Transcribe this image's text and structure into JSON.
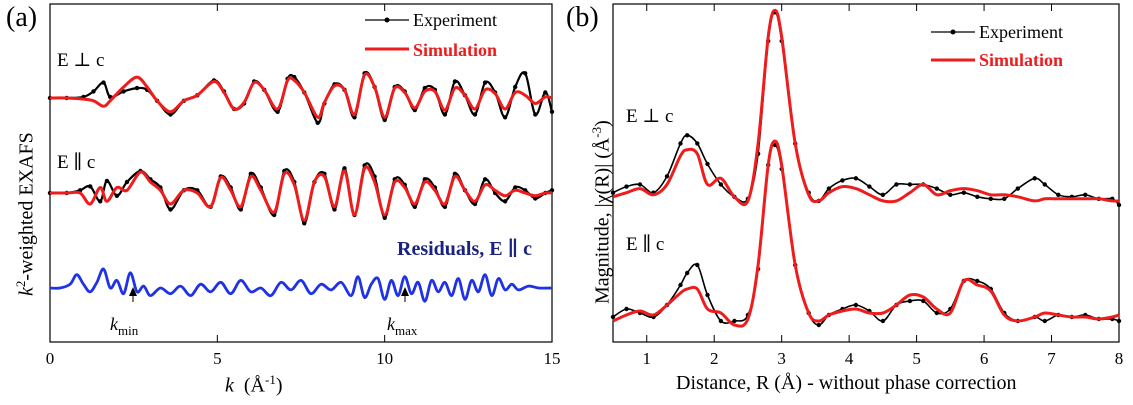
{
  "panel_a": {
    "letter": "(a)",
    "ylabel_k": "k",
    "ylabel_sup": "2",
    "ylabel_rest": "-weighted EXAFS",
    "xlabel_k": "k",
    "xlabel_unit": "(Å",
    "xlabel_unit_sup": "-1",
    "xlabel_close": ")",
    "label_perp": "E ⊥ c",
    "label_par": "E ∥ c",
    "residuals_label": "Residuals, E ∥ c",
    "kmin_main": "k",
    "kmin_sub": "min",
    "kmax_main": "k",
    "kmax_sub": "max"
  },
  "panel_b": {
    "letter": "(b)",
    "ylabel": "Magnitude, |χ(R)| (Å",
    "ylabel_sup": "-3",
    "ylabel_close": ")",
    "xlabel": "Distance, R (Å) - without phase correction",
    "label_perp": "E ⊥ c",
    "label_par": "E ∥ c"
  },
  "legend": {
    "experiment": "Experiment",
    "simulation": "Simulation"
  },
  "colors": {
    "experiment": "#000000",
    "simulation": "#ee1c1c",
    "residuals": "#1f32e6",
    "residuals_label": "#1a237e"
  },
  "chart_data": [
    {
      "type": "line",
      "panel": "(a)",
      "xlabel": "k (Å-1)",
      "ylabel": "k2-weighted EXAFS",
      "xlim": [
        0,
        15
      ],
      "xticks": [
        0,
        5,
        10,
        15
      ],
      "legend_position": "top-right",
      "kmin": 2.3,
      "kmax": 10.6,
      "series": [
        {
          "name": "Experiment",
          "label": "E ⊥ c",
          "x": [
            0,
            0.5,
            1.0,
            1.3,
            1.6,
            1.8,
            2.2,
            2.6,
            2.9,
            3.2,
            3.6,
            4.0,
            4.4,
            4.9,
            5.2,
            5.5,
            5.8,
            6.1,
            6.4,
            6.8,
            7.1,
            7.3,
            7.6,
            8.0,
            8.2,
            8.5,
            8.8,
            9.1,
            9.4,
            9.7,
            10.0,
            10.3,
            10.6,
            10.9,
            11.2,
            11.5,
            11.8,
            12.1,
            12.4,
            12.7,
            13.0,
            13.3,
            13.6,
            13.9,
            14.2,
            14.5,
            14.8,
            15.0
          ],
          "y": [
            0,
            0,
            0.02,
            0.12,
            0.28,
            0.02,
            0.12,
            0.18,
            0.15,
            -0.05,
            -0.3,
            -0.05,
            0.05,
            0.32,
            0.12,
            -0.2,
            -0.1,
            0.3,
            0.15,
            -0.25,
            0.35,
            0.38,
            0.1,
            -0.45,
            -0.1,
            0.25,
            0.15,
            -0.35,
            0.45,
            0.2,
            -0.4,
            0.2,
            0.12,
            -0.22,
            0.18,
            0.15,
            -0.3,
            0.3,
            0.05,
            -0.3,
            0.28,
            0.1,
            -0.35,
            0.2,
            0.45,
            -0.3,
            0.1,
            -0.25
          ]
        },
        {
          "name": "Simulation",
          "label": "E ⊥ c",
          "x": [
            0,
            0.5,
            1.0,
            1.3,
            1.6,
            1.8,
            2.2,
            2.6,
            2.9,
            3.2,
            3.6,
            4.0,
            4.4,
            4.9,
            5.2,
            5.5,
            5.8,
            6.1,
            6.4,
            6.8,
            7.1,
            7.3,
            7.6,
            8.0,
            8.2,
            8.5,
            8.8,
            9.1,
            9.4,
            9.7,
            10.0,
            10.3,
            10.6,
            10.9,
            11.2,
            11.5,
            11.8,
            12.1,
            12.4,
            12.7,
            13.0,
            13.3,
            13.6,
            13.9,
            14.2,
            14.5,
            14.8,
            15.0
          ],
          "y": [
            0,
            0,
            -0.02,
            -0.05,
            -0.15,
            -0.05,
            0.2,
            0.38,
            0.2,
            -0.05,
            -0.25,
            -0.05,
            0.05,
            0.3,
            0.1,
            -0.2,
            -0.08,
            0.28,
            0.15,
            -0.2,
            0.32,
            0.32,
            0.1,
            -0.35,
            -0.08,
            0.22,
            0.15,
            -0.3,
            0.42,
            0.2,
            -0.35,
            0.18,
            0.1,
            -0.18,
            0.12,
            0.12,
            -0.22,
            0.18,
            0.05,
            -0.2,
            0.15,
            0.08,
            -0.2,
            0.1,
            0.05,
            -0.1,
            0.02,
            0.0
          ]
        },
        {
          "name": "Experiment",
          "label": "E ∥ c",
          "x": [
            0,
            0.5,
            0.9,
            1.2,
            1.5,
            1.7,
            2.0,
            2.3,
            2.7,
            3.0,
            3.3,
            3.6,
            4.0,
            4.4,
            4.8,
            5.1,
            5.4,
            5.7,
            6.0,
            6.3,
            6.7,
            7.0,
            7.3,
            7.6,
            7.9,
            8.2,
            8.5,
            8.8,
            9.1,
            9.4,
            9.7,
            10.0,
            10.3,
            10.6,
            10.9,
            11.2,
            11.5,
            11.8,
            12.1,
            12.4,
            12.7,
            13.0,
            13.3,
            13.6,
            13.9,
            14.2,
            14.5,
            14.8,
            15.0
          ],
          "y": [
            0,
            0,
            0.05,
            0.12,
            -0.15,
            0.22,
            -0.05,
            0.2,
            0.4,
            0.25,
            0.1,
            -0.3,
            0.05,
            0.05,
            -0.25,
            0.3,
            0.1,
            -0.3,
            0.35,
            0.1,
            -0.4,
            0.4,
            0.2,
            -0.55,
            0.2,
            0.35,
            -0.3,
            0.45,
            -0.4,
            0.5,
            0.3,
            -0.45,
            0.25,
            0.15,
            -0.25,
            0.25,
            0.1,
            -0.25,
            0.35,
            0.05,
            -0.2,
            0.25,
            0.0,
            -0.15,
            0.1,
            0.05,
            -0.1,
            0.0,
            0.05
          ]
        },
        {
          "name": "Simulation",
          "label": "E ∥ c",
          "x": [
            0,
            0.5,
            0.9,
            1.2,
            1.5,
            1.7,
            2.0,
            2.3,
            2.7,
            3.0,
            3.3,
            3.6,
            4.0,
            4.4,
            4.8,
            5.1,
            5.4,
            5.7,
            6.0,
            6.3,
            6.7,
            7.0,
            7.3,
            7.6,
            7.9,
            8.2,
            8.5,
            8.8,
            9.1,
            9.4,
            9.7,
            10.0,
            10.3,
            10.6,
            10.9,
            11.2,
            11.5,
            11.8,
            12.1,
            12.4,
            12.7,
            13.0,
            13.3,
            13.6,
            13.9,
            14.2,
            14.5,
            14.8,
            15.0
          ],
          "y": [
            0,
            0,
            0.0,
            -0.2,
            0.1,
            -0.15,
            0.1,
            0.05,
            0.38,
            0.2,
            0.05,
            -0.2,
            0.05,
            0.0,
            -0.25,
            0.28,
            0.05,
            -0.25,
            0.3,
            0.05,
            -0.35,
            0.35,
            0.15,
            -0.5,
            0.2,
            0.3,
            -0.25,
            0.4,
            -0.4,
            0.45,
            0.2,
            -0.4,
            0.2,
            0.1,
            -0.2,
            0.2,
            0.05,
            -0.2,
            0.3,
            0.05,
            -0.15,
            0.15,
            0.05,
            -0.05,
            0.05,
            0.0,
            -0.05,
            0.0,
            0.0
          ]
        },
        {
          "name": "Residuals, E ∥ c",
          "x": [
            0,
            0.3,
            0.6,
            0.8,
            1.0,
            1.2,
            1.4,
            1.6,
            1.8,
            2.0,
            2.2,
            2.4,
            2.6,
            2.8,
            3.0,
            3.3,
            3.6,
            3.9,
            4.2,
            4.5,
            4.8,
            5.1,
            5.4,
            5.7,
            6.0,
            6.3,
            6.6,
            6.9,
            7.2,
            7.5,
            7.8,
            8.1,
            8.4,
            8.7,
            9.0,
            9.2,
            9.4,
            9.6,
            9.8,
            10.0,
            10.2,
            10.4,
            10.6,
            10.8,
            11.0,
            11.2,
            11.4,
            11.6,
            11.8,
            12.0,
            12.2,
            12.4,
            12.6,
            12.8,
            13.0,
            13.2,
            13.4,
            13.6,
            13.8,
            14.0,
            14.3,
            14.6,
            15.0
          ],
          "y": [
            0,
            0.0,
            0.1,
            0.35,
            0.1,
            -0.1,
            0.15,
            0.5,
            0.0,
            0.2,
            -0.15,
            0.4,
            -0.1,
            0.05,
            -0.2,
            0.0,
            -0.15,
            0.05,
            -0.2,
            0.1,
            -0.1,
            0.15,
            -0.15,
            0.2,
            -0.1,
            0.0,
            -0.2,
            0.15,
            -0.05,
            0.2,
            -0.15,
            0.1,
            -0.05,
            0.15,
            -0.2,
            0.3,
            -0.25,
            0.1,
            0.25,
            -0.3,
            0.2,
            -0.2,
            0.3,
            -0.15,
            0.15,
            -0.35,
            0.2,
            -0.1,
            0.15,
            -0.2,
            0.25,
            -0.3,
            0.2,
            -0.1,
            0.35,
            -0.2,
            0.25,
            -0.05,
            0.1,
            -0.05,
            0.05,
            0.0,
            0.0
          ]
        }
      ]
    },
    {
      "type": "line",
      "panel": "(b)",
      "xlabel": "Distance, R (Å) - without phase correction",
      "ylabel": "Magnitude, |χ(R)| (Å-3)",
      "xlim": [
        0.5,
        8
      ],
      "xticks": [
        1,
        2,
        3,
        4,
        5,
        6,
        7,
        8
      ],
      "legend_position": "top-right",
      "series": [
        {
          "name": "Experiment",
          "label": "E ⊥ c",
          "x": [
            0.5,
            0.7,
            0.9,
            1.1,
            1.3,
            1.5,
            1.6,
            1.75,
            1.9,
            2.1,
            2.3,
            2.5,
            2.65,
            2.8,
            2.9,
            3.0,
            3.2,
            3.4,
            3.55,
            3.7,
            3.9,
            4.1,
            4.3,
            4.5,
            4.7,
            4.9,
            5.1,
            5.3,
            5.5,
            5.7,
            5.9,
            6.1,
            6.3,
            6.5,
            6.75,
            6.9,
            7.1,
            7.3,
            7.5,
            7.7,
            7.9,
            8.0
          ],
          "y": [
            0.06,
            0.09,
            0.1,
            0.06,
            0.14,
            0.3,
            0.34,
            0.3,
            0.2,
            0.1,
            0.04,
            0.03,
            0.25,
            0.8,
            0.94,
            0.8,
            0.3,
            0.06,
            0.02,
            0.08,
            0.12,
            0.13,
            0.09,
            0.05,
            0.1,
            0.1,
            0.1,
            0.08,
            0.05,
            0.06,
            0.04,
            0.03,
            0.03,
            0.08,
            0.13,
            0.1,
            0.05,
            0.04,
            0.05,
            0.03,
            0.03,
            0.0
          ]
        },
        {
          "name": "Simulation",
          "label": "E ⊥ c",
          "x": [
            0.5,
            0.7,
            0.9,
            1.1,
            1.3,
            1.5,
            1.6,
            1.75,
            1.9,
            2.1,
            2.3,
            2.5,
            2.65,
            2.8,
            2.9,
            3.0,
            3.2,
            3.4,
            3.55,
            3.7,
            3.9,
            4.1,
            4.3,
            4.5,
            4.7,
            4.9,
            5.1,
            5.3,
            5.5,
            5.7,
            5.9,
            6.1,
            6.3,
            6.5,
            6.75,
            6.9,
            7.1,
            7.3,
            7.5,
            7.7,
            7.9,
            8.0
          ],
          "y": [
            0.04,
            0.06,
            0.08,
            0.05,
            0.1,
            0.24,
            0.27,
            0.25,
            0.1,
            0.13,
            0.04,
            0.02,
            0.3,
            0.82,
            0.95,
            0.82,
            0.3,
            0.05,
            0.02,
            0.06,
            0.09,
            0.08,
            0.05,
            0.02,
            0.02,
            0.06,
            0.1,
            0.05,
            0.07,
            0.08,
            0.07,
            0.05,
            0.05,
            0.04,
            0.02,
            0.03,
            0.03,
            0.03,
            0.03,
            0.03,
            0.02,
            0.02
          ]
        },
        {
          "name": "Experiment",
          "label": "E ∥ c",
          "x": [
            0.5,
            0.7,
            0.9,
            1.1,
            1.3,
            1.5,
            1.6,
            1.75,
            1.9,
            2.1,
            2.3,
            2.5,
            2.65,
            2.8,
            2.9,
            3.0,
            3.2,
            3.4,
            3.55,
            3.7,
            3.9,
            4.1,
            4.3,
            4.5,
            4.7,
            4.9,
            5.1,
            5.3,
            5.5,
            5.7,
            5.9,
            6.1,
            6.3,
            6.5,
            6.75,
            6.9,
            7.1,
            7.3,
            7.5,
            7.7,
            7.9,
            8.0
          ],
          "y": [
            0.04,
            0.08,
            0.06,
            0.04,
            0.1,
            0.2,
            0.26,
            0.3,
            0.15,
            0.02,
            0.02,
            0.05,
            0.28,
            0.8,
            0.9,
            0.78,
            0.3,
            0.06,
            0.0,
            0.05,
            0.08,
            0.1,
            0.07,
            0.02,
            0.1,
            0.12,
            0.12,
            0.06,
            0.08,
            0.22,
            0.22,
            0.18,
            0.06,
            0.02,
            0.04,
            0.02,
            0.05,
            0.04,
            0.05,
            0.03,
            0.03,
            0.02
          ]
        },
        {
          "name": "Simulation",
          "label": "E ∥ c",
          "x": [
            0.5,
            0.7,
            0.9,
            1.1,
            1.3,
            1.5,
            1.6,
            1.75,
            1.9,
            2.1,
            2.3,
            2.5,
            2.65,
            2.8,
            2.9,
            3.0,
            3.2,
            3.4,
            3.55,
            3.7,
            3.9,
            4.1,
            4.3,
            4.5,
            4.7,
            4.9,
            5.1,
            5.3,
            5.5,
            5.7,
            5.9,
            6.1,
            6.3,
            6.5,
            6.75,
            6.9,
            7.1,
            7.3,
            7.5,
            7.7,
            7.9,
            8.0
          ],
          "y": [
            0.02,
            0.05,
            0.07,
            0.05,
            0.1,
            0.16,
            0.18,
            0.18,
            0.08,
            0.06,
            0.0,
            0.03,
            0.3,
            0.8,
            0.92,
            0.8,
            0.3,
            0.06,
            0.02,
            0.05,
            0.07,
            0.08,
            0.06,
            0.06,
            0.1,
            0.15,
            0.14,
            0.08,
            0.06,
            0.22,
            0.2,
            0.17,
            0.05,
            0.02,
            0.04,
            0.06,
            0.05,
            0.04,
            0.04,
            0.03,
            0.04,
            0.05
          ]
        }
      ]
    }
  ]
}
